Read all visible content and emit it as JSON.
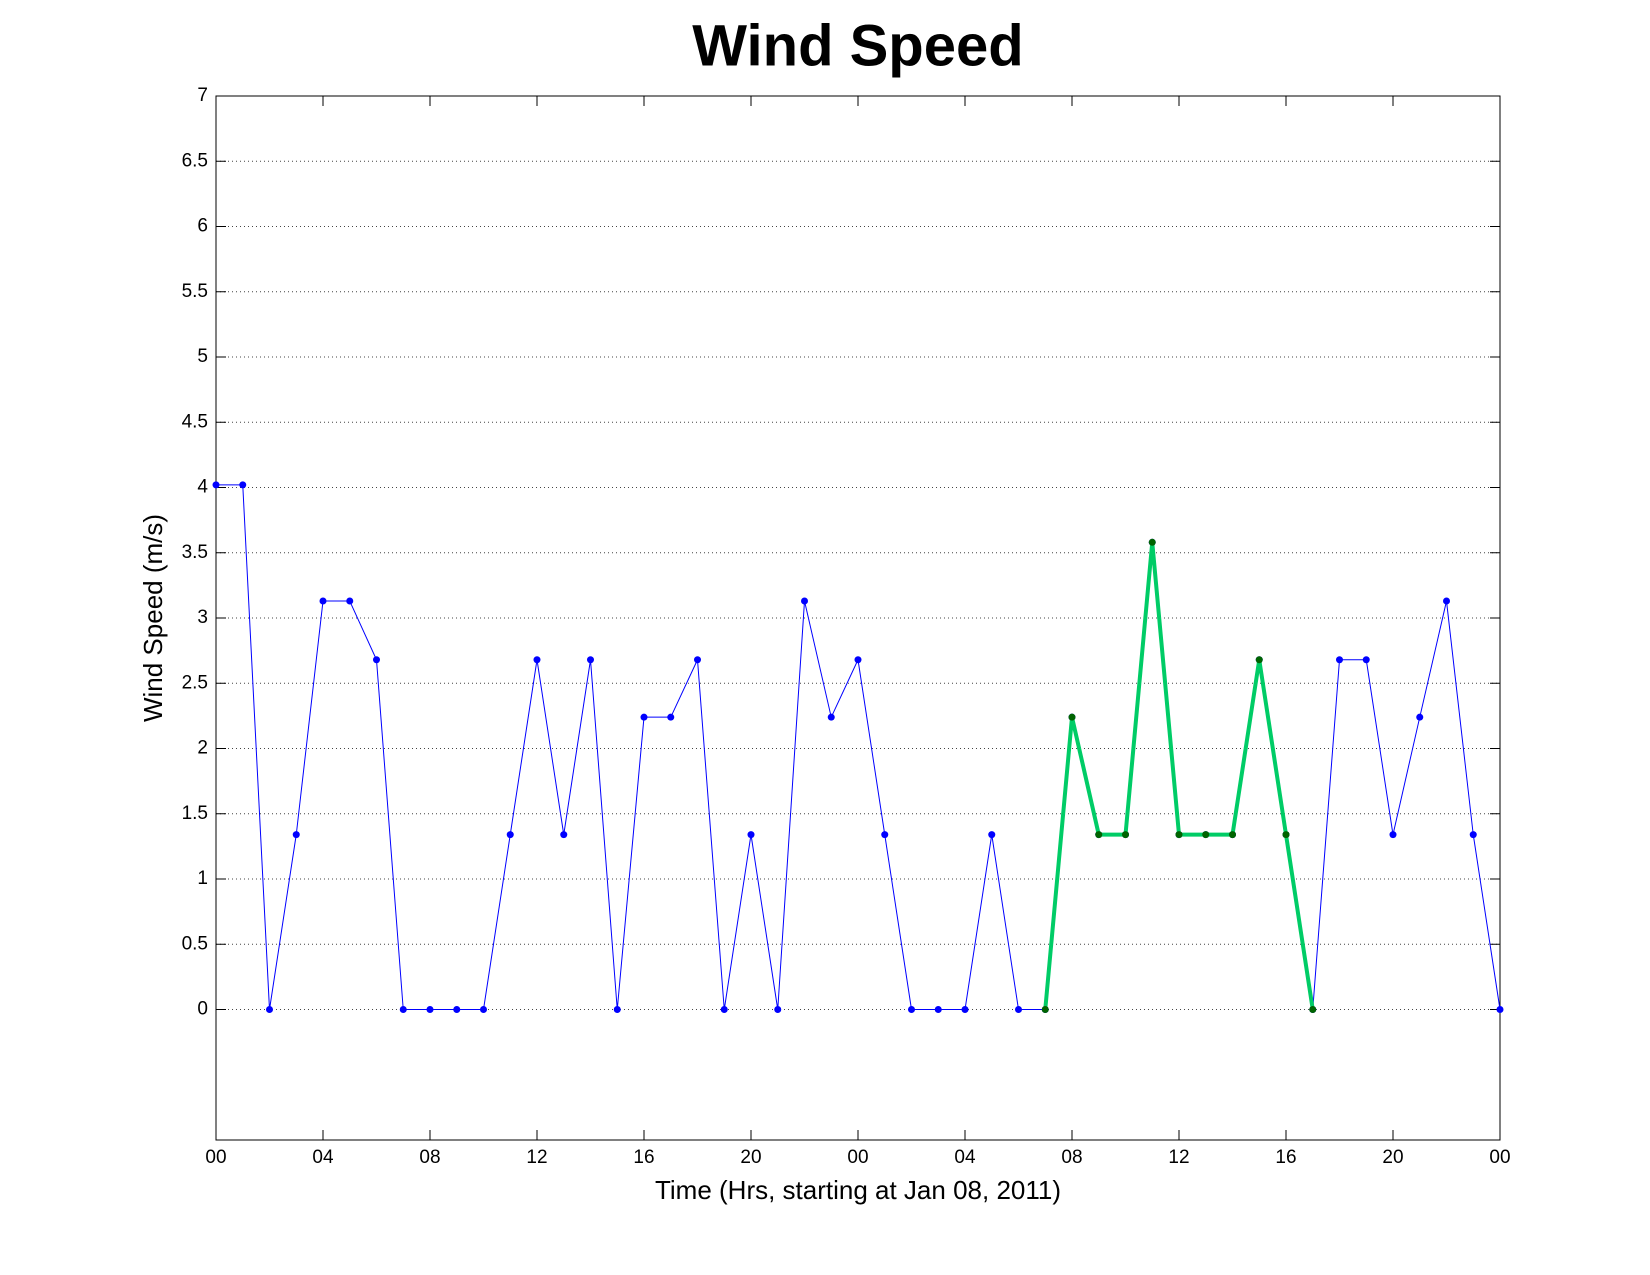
{
  "chart_data": {
    "type": "line",
    "title": "Wind Speed",
    "x_label": "Time (Hrs, starting at Jan 08, 2011)",
    "y_label": "Wind Speed (m/s)",
    "x": [
      0,
      1,
      2,
      3,
      4,
      5,
      6,
      7,
      8,
      9,
      10,
      11,
      12,
      13,
      14,
      15,
      16,
      17,
      18,
      19,
      20,
      21,
      22,
      23,
      24,
      25,
      26,
      27,
      28,
      29,
      30,
      31,
      32,
      33,
      34,
      35,
      36,
      37,
      38,
      39,
      40,
      41,
      42,
      43,
      44,
      45,
      46,
      47,
      48
    ],
    "series": [
      {
        "color": "#0000ff",
        "marker_color": "#0000ff",
        "line_width": 1,
        "values": [
          4.02,
          4.02,
          0,
          1.34,
          3.13,
          3.13,
          2.68,
          0,
          0,
          0,
          0,
          1.34,
          2.68,
          1.34,
          2.68,
          0,
          2.24,
          2.24,
          2.68,
          0,
          1.34,
          0,
          3.13,
          2.24,
          2.68,
          1.34,
          0,
          0,
          0,
          1.34,
          0,
          0,
          2.24,
          1.34,
          1.34,
          3.58,
          1.34,
          1.34,
          1.34,
          2.68,
          1.34,
          0,
          2.68,
          2.68,
          1.34,
          2.24,
          3.13,
          1.34,
          0
        ]
      },
      {
        "color": "#00cc66",
        "marker_color": "#006400",
        "line_width": 4,
        "values": [
          null,
          null,
          null,
          null,
          null,
          null,
          null,
          null,
          null,
          null,
          null,
          null,
          null,
          null,
          null,
          null,
          null,
          null,
          null,
          null,
          null,
          null,
          null,
          null,
          null,
          null,
          null,
          null,
          null,
          null,
          null,
          0,
          2.24,
          1.34,
          1.34,
          3.58,
          1.34,
          1.34,
          1.34,
          2.68,
          1.34,
          0,
          null,
          null,
          null,
          null,
          null,
          null,
          null
        ]
      }
    ],
    "xlim": [
      0,
      48
    ],
    "xticks": [
      {
        "value": 0,
        "label": "00"
      },
      {
        "value": 4,
        "label": "04"
      },
      {
        "value": 8,
        "label": "08"
      },
      {
        "value": 12,
        "label": "12"
      },
      {
        "value": 16,
        "label": "16"
      },
      {
        "value": 20,
        "label": "20"
      },
      {
        "value": 24,
        "label": "00"
      },
      {
        "value": 28,
        "label": "04"
      },
      {
        "value": 32,
        "label": "08"
      },
      {
        "value": 36,
        "label": "12"
      },
      {
        "value": 40,
        "label": "16"
      },
      {
        "value": 44,
        "label": "20"
      },
      {
        "value": 48,
        "label": "00"
      }
    ],
    "ylim": [
      -1,
      7
    ],
    "yticks": [
      0,
      0.5,
      1,
      1.5,
      2,
      2.5,
      3,
      3.5,
      4,
      4.5,
      5,
      5.5,
      6,
      6.5,
      7
    ],
    "grid": true
  }
}
